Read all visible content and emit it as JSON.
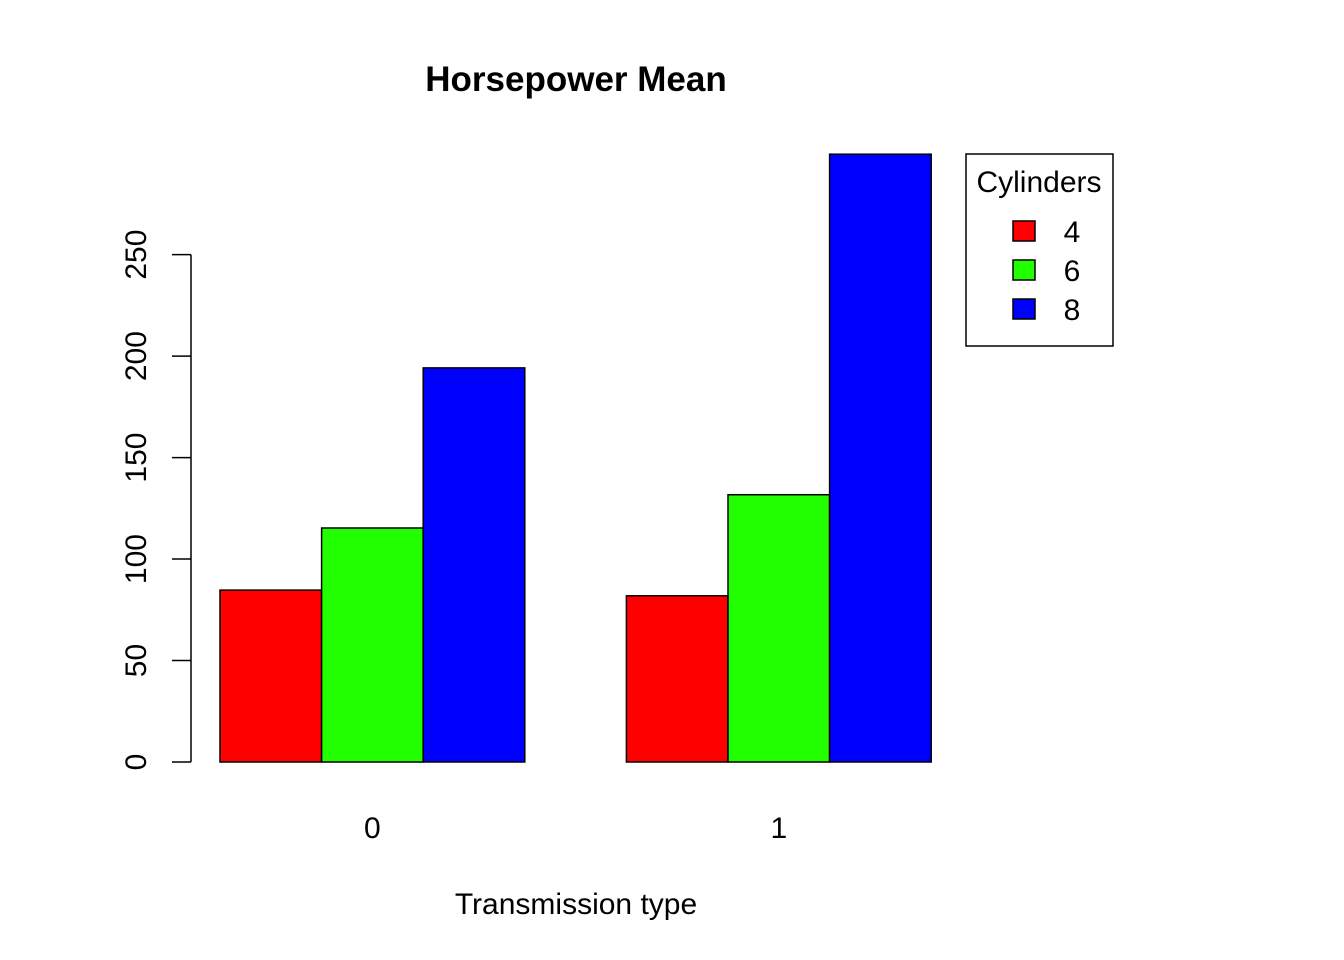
{
  "chart_data": {
    "type": "bar",
    "title": "Horsepower Mean",
    "xlabel": "Transmission type",
    "ylabel": "",
    "categories": [
      "0",
      "1"
    ],
    "series": [
      {
        "name": "4",
        "color": "#ff0000",
        "values": [
          84.7,
          81.9
        ]
      },
      {
        "name": "6",
        "color": "#22ff00",
        "values": [
          115.3,
          131.7
        ]
      },
      {
        "name": "8",
        "color": "#0000ff",
        "values": [
          194.2,
          299.5
        ]
      }
    ],
    "ylim": [
      0,
      299.5
    ],
    "yticks": [
      0,
      50,
      100,
      150,
      200,
      250
    ],
    "ytick_labels": [
      "0",
      "50",
      "100",
      "150",
      "200",
      "250"
    ],
    "legend": {
      "title": "Cylinders",
      "position": "top-right"
    },
    "grid": false
  }
}
